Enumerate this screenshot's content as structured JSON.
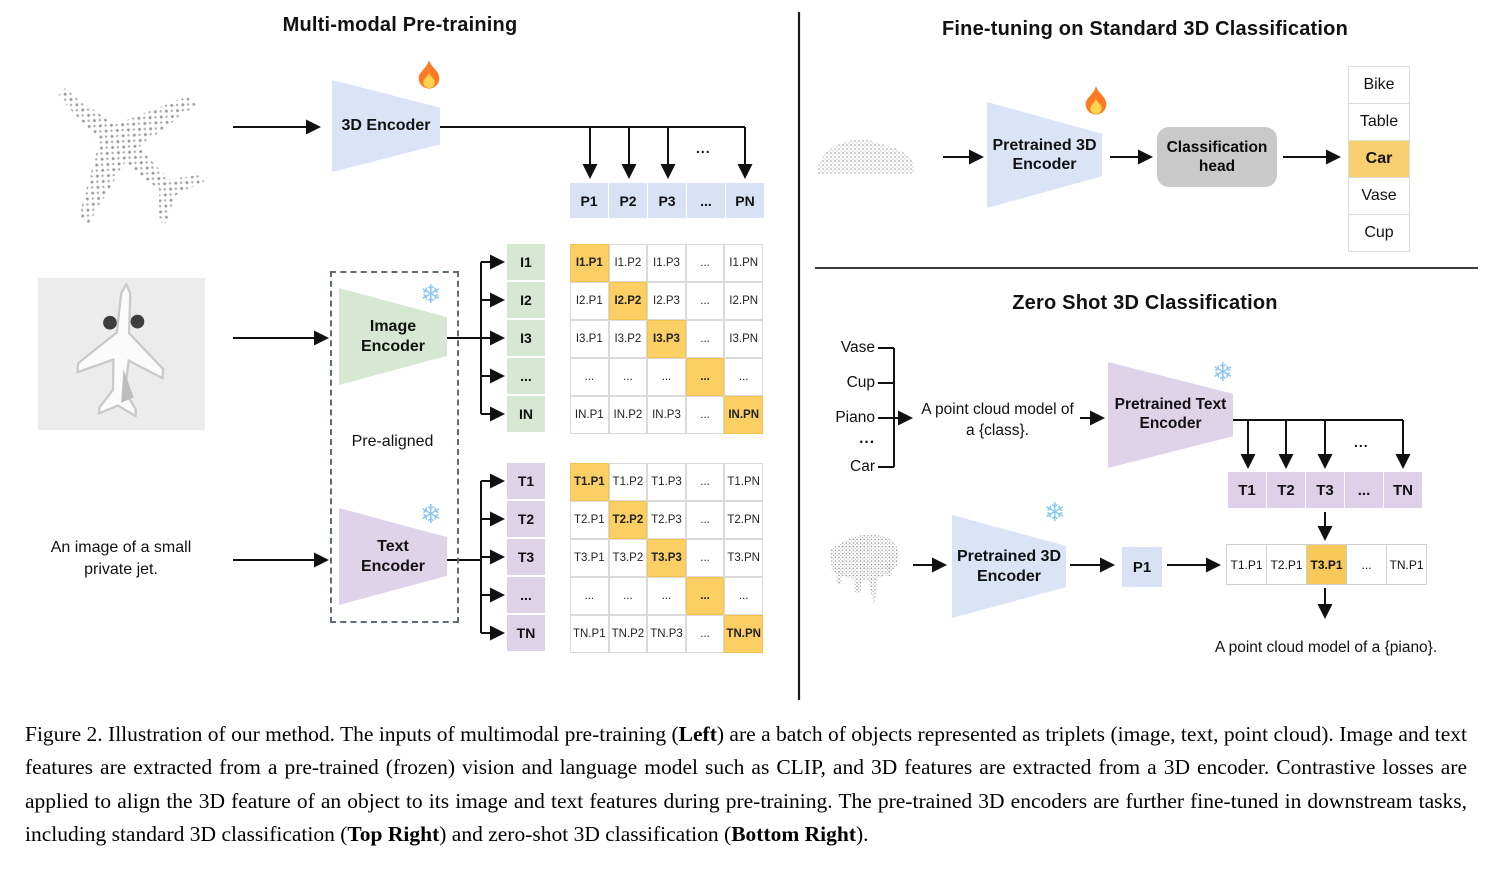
{
  "left": {
    "title": "Multi-modal Pre-training",
    "encoder_3d_label": "3D Encoder",
    "image_encoder_label": "Image Encoder",
    "text_encoder_label": "Text Encoder",
    "prealigned_label": "Pre-aligned",
    "jet_caption_lines": [
      "An image of a small",
      "private jet."
    ],
    "branch_ellipsis": "...",
    "p_row": [
      "P1",
      "P2",
      "P3",
      "...",
      "PN"
    ],
    "i_col": [
      "I1",
      "I2",
      "I3",
      "...",
      "IN"
    ],
    "t_col": [
      "T1",
      "T2",
      "T3",
      "...",
      "TN"
    ],
    "i_matrix": [
      [
        "I1.P1",
        "I1.P2",
        "I1.P3",
        "...",
        "I1.PN"
      ],
      [
        "I2.P1",
        "I2.P2",
        "I2.P3",
        "...",
        "I2.PN"
      ],
      [
        "I3.P1",
        "I3.P2",
        "I3.P3",
        "...",
        "I3.PN"
      ],
      [
        "...",
        "...",
        "...",
        "...",
        "..."
      ],
      [
        "IN.P1",
        "IN.P2",
        "IN.P3",
        "...",
        "IN.PN"
      ]
    ],
    "t_matrix": [
      [
        "T1.P1",
        "T1.P2",
        "T1.P3",
        "...",
        "T1.PN"
      ],
      [
        "T2.P1",
        "T2.P2",
        "T2.P3",
        "...",
        "T2.PN"
      ],
      [
        "T3.P1",
        "T3.P2",
        "T3.P3",
        "...",
        "T3.PN"
      ],
      [
        "...",
        "...",
        "...",
        "...",
        "..."
      ],
      [
        "TN.P1",
        "TN.P2",
        "TN.P3",
        "...",
        "TN.PN"
      ]
    ]
  },
  "top_right": {
    "title": "Fine-tuning on Standard 3D Classification",
    "encoder_label": "Pretrained 3D Encoder",
    "head_label": "Classification head",
    "classes": [
      "Bike",
      "Table",
      "Car",
      "Vase",
      "Cup"
    ],
    "highlight_class": "Car",
    "highlight_index": 2
  },
  "bottom_right": {
    "title": "Zero Shot 3D Classification",
    "classes": [
      "Vase",
      "Cup",
      "Piano",
      "...",
      "Car"
    ],
    "prompt_lines": [
      "A point cloud model of",
      "a {class}."
    ],
    "text_encoder_label": "Pretrained Text Encoder",
    "encoder_3d_label": "Pretrained 3D Encoder",
    "p1_label": "P1",
    "t_row": [
      "T1",
      "T2",
      "T3",
      "...",
      "TN"
    ],
    "branch_ellipsis": "...",
    "sim_row": [
      "T1.P1",
      "T2.P1",
      "T3.P1",
      "...",
      "TN.P1"
    ],
    "sim_highlight_index": 2,
    "result_text": "A point cloud model of a {piano}."
  },
  "icons": {
    "fire": "fire-icon",
    "snowflake": "snowflake-icon",
    "snowflake_glyph": "❄"
  },
  "colors": {
    "encoder_blue": "#dbe4f6",
    "encoder_green": "#d7e8d2",
    "encoder_purple": "#dfd3ea",
    "highlight_orange": "#fbcf63",
    "head_gray": "#c9c9c9"
  },
  "caption": {
    "segments": [
      {
        "t": "Figure 2. Illustration of our method. The inputs of multimodal pre-training (",
        "b": false
      },
      {
        "t": "Left",
        "b": true
      },
      {
        "t": ") are a batch of objects represented as triplets (image, text, point cloud).  Image and text features are extracted from a pre-trained (frozen) vision and language model such as CLIP, and 3D features are extracted from a 3D encoder.  Contrastive losses are applied to align the 3D feature of an object to its image and text features during pre-training.  The pre-trained 3D encoders are further fine-tuned in downstream tasks, including standard 3D classification (",
        "b": false
      },
      {
        "t": "Top Right",
        "b": true
      },
      {
        "t": ") and zero-shot 3D classification (",
        "b": false
      },
      {
        "t": "Bottom Right",
        "b": true
      },
      {
        "t": ").",
        "b": false
      }
    ]
  }
}
